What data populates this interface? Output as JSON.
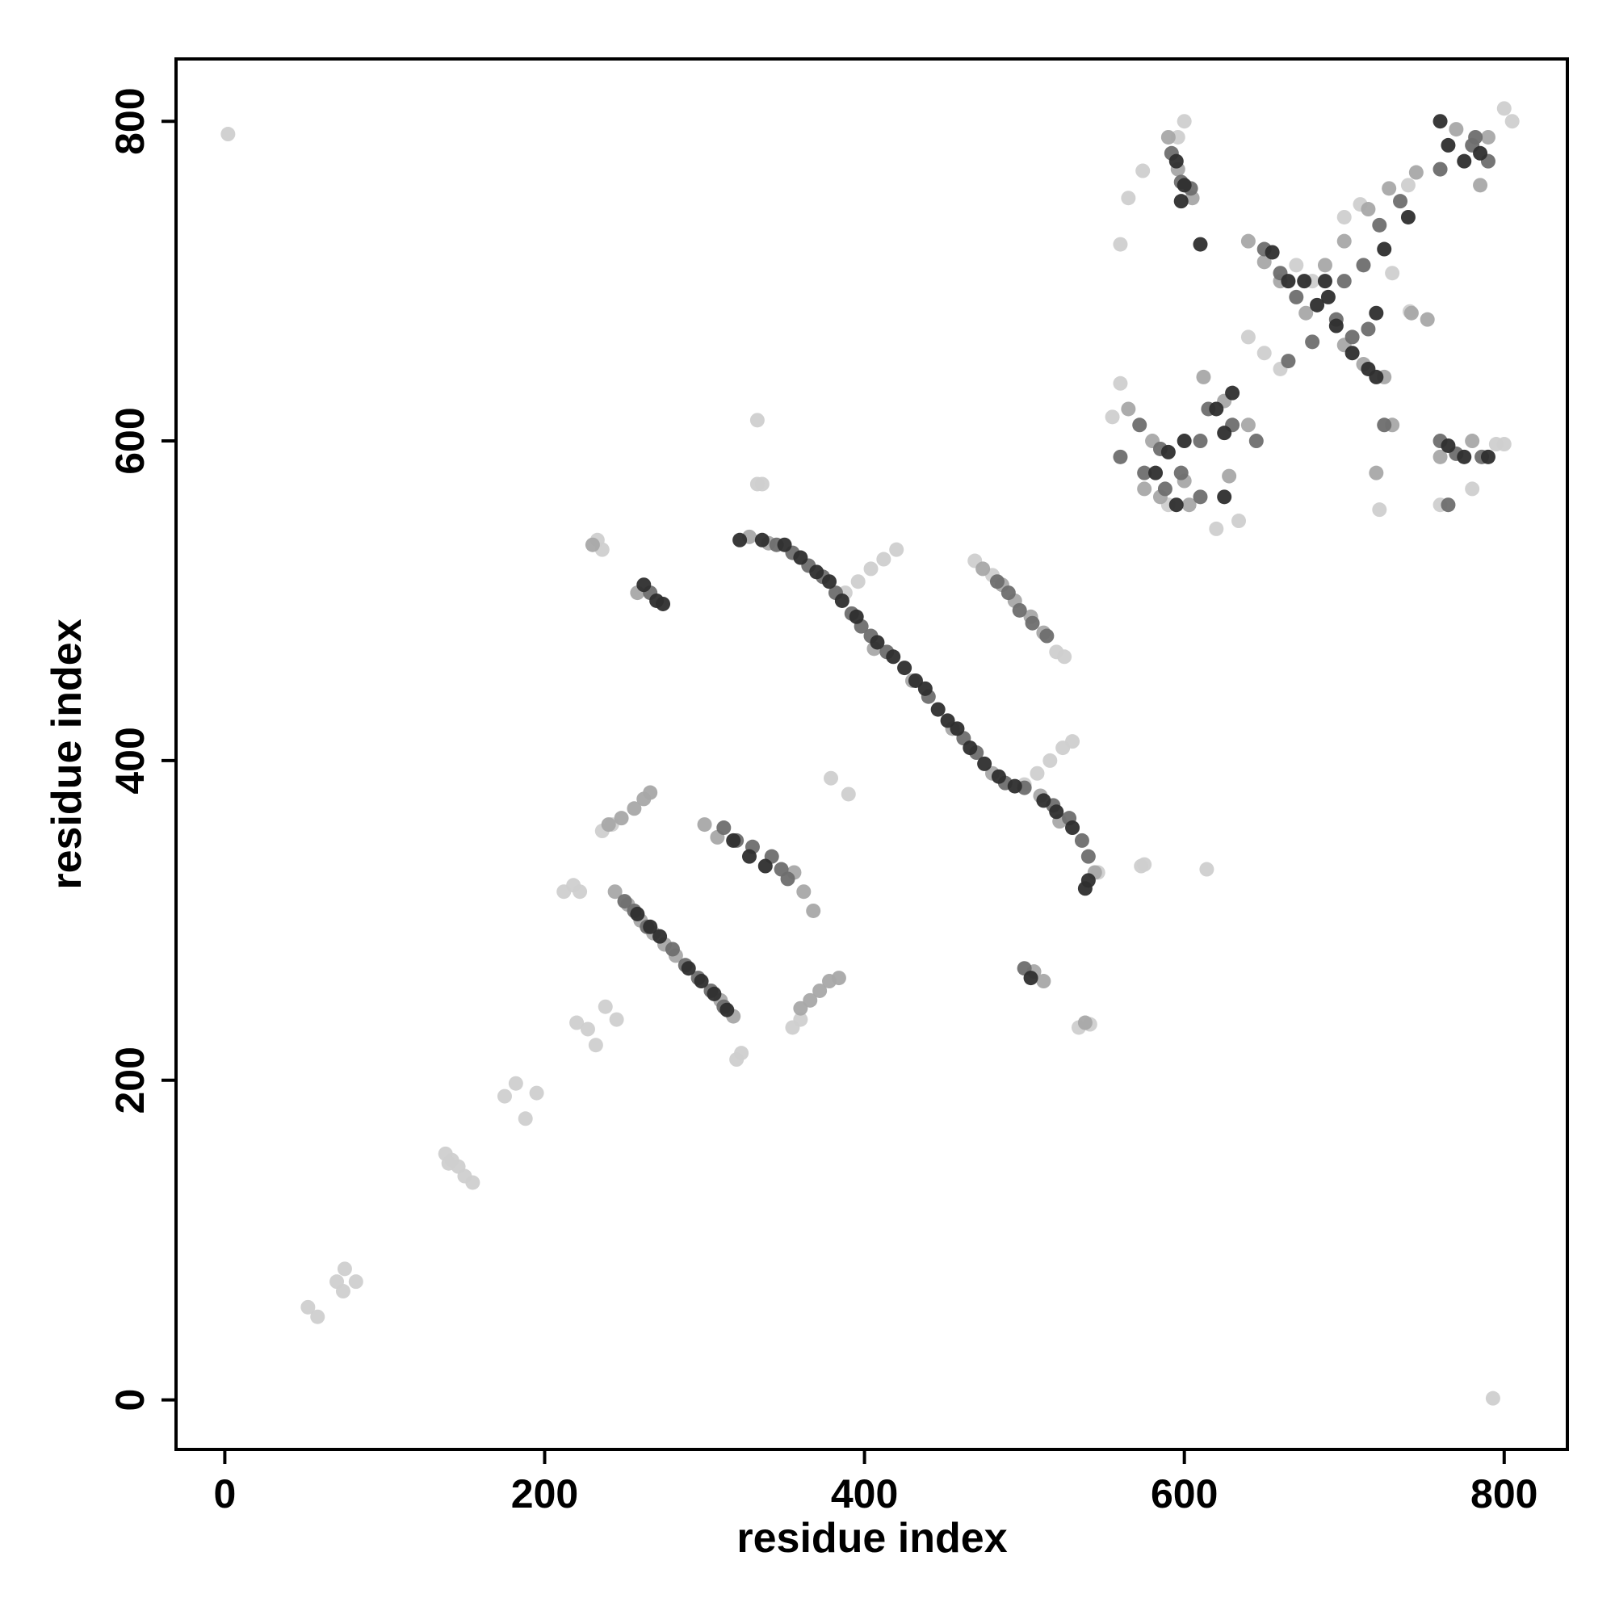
{
  "chart_data": {
    "type": "scatter",
    "x_label": "residue index",
    "y_label": "residue index",
    "xlim": [
      -30.5,
      839.5
    ],
    "ylim": [
      -31,
      839
    ],
    "xticks": [
      0,
      200,
      400,
      600,
      800
    ],
    "yticks": [
      0,
      200,
      400,
      600,
      800
    ],
    "grid": false,
    "series": [
      {
        "color": "#cfcfcf",
        "x": [
          2,
          793,
          52,
          58,
          70,
          75,
          74,
          82,
          138,
          142,
          146,
          150,
          155,
          140,
          175,
          182,
          188,
          195,
          220,
          227,
          232,
          238,
          245,
          212,
          218,
          222,
          233,
          236,
          333,
          336,
          333,
          379,
          390,
          573,
          614,
          320,
          323,
          388,
          396,
          404,
          412,
          420,
          500,
          508,
          516,
          524,
          530,
          469,
          480,
          520,
          525,
          236,
          242,
          355,
          360,
          541,
          534,
          546,
          560,
          565,
          574,
          600,
          596,
          640,
          650,
          660,
          700,
          710,
          740,
          760,
          805,
          800,
          795,
          800,
          760,
          722,
          780,
          555,
          560,
          590,
          620,
          634,
          741,
          670,
          680,
          730,
          575
        ],
        "y": [
          792,
          1,
          58,
          52,
          74,
          82,
          68,
          74,
          154,
          150,
          146,
          140,
          136,
          148,
          190,
          198,
          176,
          192,
          236,
          232,
          222,
          246,
          238,
          318,
          322,
          318,
          538,
          532,
          613,
          573,
          573,
          389,
          379,
          334,
          332,
          213,
          217,
          505,
          512,
          520,
          526,
          532,
          385,
          392,
          400,
          408,
          412,
          525,
          516,
          468,
          465,
          356,
          360,
          233,
          238,
          235,
          233,
          330,
          723,
          752,
          769,
          800,
          790,
          665,
          655,
          645,
          740,
          748,
          760,
          770,
          800,
          808,
          598,
          598,
          560,
          557,
          570,
          615,
          636,
          560,
          545,
          550,
          681,
          710,
          700,
          705,
          335
        ]
      },
      {
        "color": "#a8a8a8",
        "x": [
          328,
          340,
          474,
          486,
          494,
          504,
          512,
          244,
          252,
          260,
          268,
          275,
          282,
          310,
          318,
          300,
          308,
          356,
          362,
          368,
          240,
          248,
          256,
          262,
          266,
          360,
          366,
          372,
          378,
          384,
          406,
          430,
          455,
          480,
          510,
          522,
          544,
          506,
          512,
          590,
          596,
          605,
          640,
          650,
          660,
          700,
          715,
          728,
          745,
          770,
          790,
          785,
          565,
          580,
          600,
          612,
          625,
          640,
          575,
          585,
          700,
          712,
          725,
          688,
          676,
          760,
          780,
          730,
          742,
          752,
          720,
          603,
          628,
          258,
          538,
          230
        ],
        "y": [
          540,
          536,
          520,
          510,
          500,
          490,
          480,
          318,
          310,
          300,
          292,
          285,
          278,
          250,
          240,
          360,
          352,
          330,
          318,
          306,
          360,
          364,
          370,
          376,
          380,
          245,
          250,
          256,
          262,
          264,
          470,
          450,
          420,
          392,
          378,
          362,
          330,
          268,
          262,
          790,
          770,
          752,
          725,
          712,
          700,
          725,
          745,
          758,
          768,
          795,
          790,
          760,
          620,
          600,
          575,
          640,
          625,
          610,
          570,
          565,
          660,
          648,
          640,
          710,
          680,
          590,
          600,
          610,
          680,
          676,
          580,
          560,
          578,
          505,
          236,
          535
        ]
      },
      {
        "color": "#6e6e6e",
        "x": [
          345,
          355,
          365,
          374,
          382,
          392,
          398,
          404,
          414,
          440,
          462,
          470,
          488,
          500,
          518,
          528,
          536,
          540,
          250,
          256,
          264,
          280,
          288,
          296,
          304,
          312,
          312,
          320,
          330,
          342,
          348,
          352,
          483,
          490,
          497,
          505,
          514,
          266,
          500,
          592,
          598,
          604,
          650,
          660,
          670,
          700,
          712,
          722,
          735,
          760,
          780,
          790,
          782,
          572,
          585,
          598,
          610,
          615,
          630,
          645,
          610,
          705,
          695,
          680,
          665,
          715,
          760,
          770,
          786,
          725,
          765,
          560,
          575,
          588
        ],
        "y": [
          535,
          530,
          522,
          515,
          505,
          492,
          484,
          478,
          468,
          440,
          414,
          405,
          386,
          383,
          372,
          364,
          350,
          340,
          312,
          306,
          296,
          282,
          272,
          264,
          256,
          246,
          358,
          350,
          346,
          340,
          332,
          326,
          512,
          505,
          494,
          486,
          478,
          505,
          270,
          780,
          762,
          758,
          720,
          705,
          690,
          700,
          710,
          735,
          750,
          770,
          785,
          775,
          790,
          610,
          595,
          580,
          565,
          620,
          610,
          600,
          600,
          665,
          676,
          662,
          650,
          670,
          600,
          592,
          590,
          610,
          560,
          590,
          580,
          570
        ]
      },
      {
        "color": "#2e2e2e",
        "x": [
          322,
          336,
          350,
          360,
          370,
          378,
          386,
          395,
          408,
          418,
          425,
          432,
          438,
          446,
          452,
          458,
          466,
          475,
          484,
          494,
          512,
          520,
          530,
          538,
          540,
          258,
          266,
          272,
          290,
          298,
          306,
          314,
          318,
          328,
          338,
          262,
          270,
          274,
          504,
          595,
          600,
          598,
          610,
          655,
          665,
          675,
          683,
          690,
          695,
          705,
          715,
          720,
          688,
          725,
          740,
          765,
          775,
          785,
          760,
          590,
          600,
          620,
          630,
          625,
          582,
          765,
          775,
          790,
          720,
          595,
          625
        ],
        "y": [
          538,
          538,
          535,
          527,
          518,
          512,
          500,
          490,
          474,
          465,
          458,
          450,
          445,
          432,
          425,
          420,
          408,
          398,
          390,
          384,
          375,
          368,
          358,
          320,
          325,
          304,
          296,
          290,
          270,
          262,
          254,
          244,
          350,
          340,
          334,
          510,
          500,
          498,
          264,
          775,
          760,
          750,
          723,
          718,
          700,
          700,
          685,
          690,
          672,
          655,
          645,
          640,
          700,
          720,
          740,
          785,
          775,
          780,
          800,
          593,
          600,
          620,
          630,
          605,
          580,
          597,
          590,
          590,
          680,
          560,
          565
        ]
      }
    ]
  }
}
